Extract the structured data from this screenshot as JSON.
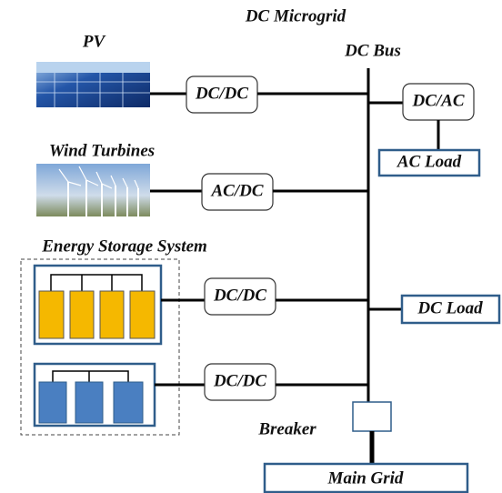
{
  "title": "DC Microgrid",
  "bus": {
    "label": "DC Bus"
  },
  "sources": [
    {
      "label": "PV",
      "converter": "DC/DC"
    },
    {
      "label": "Wind Turbines",
      "converter": "AC/DC"
    }
  ],
  "storage": {
    "label": "Energy Storage System",
    "converters": [
      "DC/DC",
      "DC/DC"
    ]
  },
  "loads": [
    {
      "converter": "DC/AC",
      "label": "AC Load"
    },
    {
      "label": "DC Load"
    }
  ],
  "breaker": {
    "label": "Breaker"
  },
  "grid": {
    "label": "Main Grid"
  }
}
